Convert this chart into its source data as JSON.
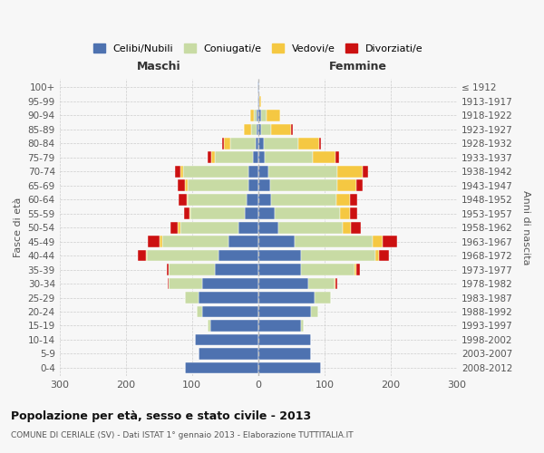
{
  "age_groups": [
    "0-4",
    "5-9",
    "10-14",
    "15-19",
    "20-24",
    "25-29",
    "30-34",
    "35-39",
    "40-44",
    "45-49",
    "50-54",
    "55-59",
    "60-64",
    "65-69",
    "70-74",
    "75-79",
    "80-84",
    "85-89",
    "90-94",
    "95-99",
    "100+"
  ],
  "birth_years": [
    "2008-2012",
    "2003-2007",
    "1998-2002",
    "1993-1997",
    "1988-1992",
    "1983-1987",
    "1978-1982",
    "1973-1977",
    "1968-1972",
    "1963-1967",
    "1958-1962",
    "1953-1957",
    "1948-1952",
    "1943-1947",
    "1938-1942",
    "1933-1937",
    "1928-1932",
    "1923-1927",
    "1918-1922",
    "1913-1917",
    "≤ 1912"
  ],
  "maschi_celibi": [
    110,
    90,
    95,
    72,
    85,
    90,
    85,
    65,
    60,
    45,
    30,
    20,
    18,
    15,
    15,
    8,
    4,
    3,
    2,
    1,
    1
  ],
  "maschi_coniugati": [
    0,
    0,
    0,
    4,
    8,
    20,
    50,
    70,
    108,
    100,
    88,
    82,
    88,
    92,
    98,
    58,
    38,
    8,
    5,
    0,
    0
  ],
  "maschi_vedovi": [
    0,
    0,
    0,
    0,
    0,
    0,
    0,
    0,
    2,
    4,
    3,
    2,
    2,
    4,
    5,
    5,
    10,
    10,
    5,
    0,
    0
  ],
  "maschi_divorziati": [
    0,
    0,
    0,
    0,
    0,
    0,
    2,
    3,
    12,
    18,
    12,
    8,
    12,
    10,
    8,
    5,
    3,
    0,
    0,
    0,
    0
  ],
  "femmine_celibi": [
    95,
    80,
    80,
    65,
    80,
    85,
    75,
    65,
    65,
    55,
    30,
    25,
    20,
    18,
    15,
    10,
    8,
    5,
    5,
    2,
    1
  ],
  "femmine_coniugati": [
    0,
    0,
    0,
    4,
    10,
    25,
    40,
    80,
    112,
    118,
    98,
    98,
    98,
    102,
    105,
    72,
    52,
    15,
    8,
    0,
    0
  ],
  "femmine_vedovi": [
    0,
    0,
    0,
    0,
    0,
    0,
    2,
    3,
    5,
    15,
    12,
    15,
    20,
    28,
    38,
    35,
    32,
    30,
    20,
    3,
    1
  ],
  "femmine_divorziati": [
    0,
    0,
    0,
    0,
    0,
    0,
    2,
    5,
    15,
    22,
    15,
    12,
    12,
    10,
    8,
    5,
    3,
    2,
    0,
    0,
    0
  ],
  "color_celibi": "#4e72b0",
  "color_coniugati": "#c8dba4",
  "color_vedovi": "#f5c842",
  "color_divorziati": "#cc1111",
  "title": "Popolazione per età, sesso e stato civile - 2013",
  "subtitle": "COMUNE DI CERIALE (SV) - Dati ISTAT 1° gennaio 2013 - Elaborazione TUTTITALIA.IT",
  "ylabel_left": "Fasce di età",
  "ylabel_right": "Anni di nascita",
  "xlabel_left": "Maschi",
  "xlabel_right": "Femmine",
  "xlim": 300,
  "bg_color": "#f7f7f7",
  "grid_color": "#cccccc"
}
